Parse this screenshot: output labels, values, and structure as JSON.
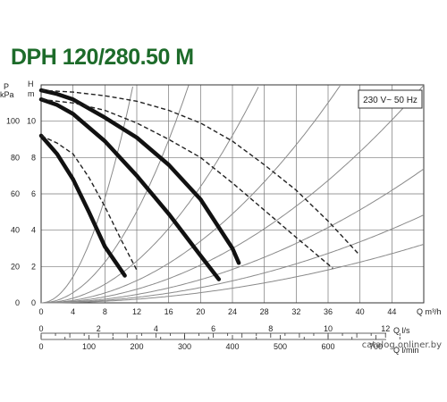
{
  "title": "DPH 120/280.50 M",
  "watermark": "catalog.onliner.by",
  "chart_data": {
    "type": "line",
    "title": "DPH 120/280.50 M",
    "annotation": "230 V~ 50 Hz",
    "left_axes": [
      {
        "unit_line1": "P",
        "unit_line2": "kPa",
        "ticks": [
          "0",
          "20",
          "40",
          "60",
          "80",
          "100"
        ]
      },
      {
        "unit_line1": "H",
        "unit_line2": "m",
        "ticks": [
          "0",
          "2",
          "4",
          "6",
          "8",
          "10"
        ]
      }
    ],
    "h_range": [
      0,
      12
    ],
    "q_m3h_range": [
      0,
      48
    ],
    "bottom_axes": [
      {
        "label": "Q m³/h",
        "ticks": [
          0,
          4,
          8,
          12,
          16,
          20,
          24,
          28,
          32,
          36,
          40,
          44
        ]
      },
      {
        "label": "Q l/s",
        "ticks": [
          0,
          2,
          4,
          6,
          8,
          10,
          12
        ]
      },
      {
        "label": "Q l/min",
        "ticks": [
          0,
          100,
          200,
          300,
          400,
          500,
          600,
          700
        ]
      }
    ],
    "grid": true,
    "series": [
      {
        "style": "solid",
        "x": [
          0,
          2,
          4,
          6,
          8,
          10.5
        ],
        "y": [
          9.2,
          8.2,
          6.8,
          5,
          3.1,
          1.5
        ]
      },
      {
        "style": "solid",
        "x": [
          0,
          2,
          4,
          8,
          12,
          16,
          20,
          22.3
        ],
        "y": [
          11.2,
          10.9,
          10.4,
          8.9,
          7,
          4.9,
          2.6,
          1.3
        ]
      },
      {
        "style": "solid",
        "x": [
          0,
          2,
          4,
          8,
          12,
          16,
          20,
          24,
          24.8
        ],
        "y": [
          11.7,
          11.5,
          11.2,
          10.2,
          9.1,
          7.6,
          5.7,
          3,
          2.2
        ]
      },
      {
        "style": "dashed",
        "x": [
          0,
          2,
          4,
          6,
          8,
          10,
          12
        ],
        "y": [
          9.2,
          8.8,
          8.2,
          6.9,
          5.3,
          3.5,
          1.8
        ]
      },
      {
        "style": "dashed",
        "x": [
          0,
          4,
          8,
          12,
          16,
          20,
          24,
          28,
          32,
          36.6
        ],
        "y": [
          11.2,
          11,
          10.6,
          9.9,
          9,
          8,
          6.6,
          5.1,
          3.6,
          1.9
        ]
      },
      {
        "style": "dashed",
        "x": [
          0,
          4,
          8,
          12,
          16,
          20,
          24,
          28,
          32,
          36,
          39.8
        ],
        "y": [
          11.7,
          11.6,
          11.4,
          11.1,
          10.6,
          9.9,
          8.9,
          7.6,
          6.2,
          4.5,
          2.7
        ]
      }
    ],
    "system_curves_k": [
      0.09,
      0.035,
      0.016,
      0.0085,
      0.0052,
      0.0032,
      0.0021,
      0.0014
    ]
  }
}
